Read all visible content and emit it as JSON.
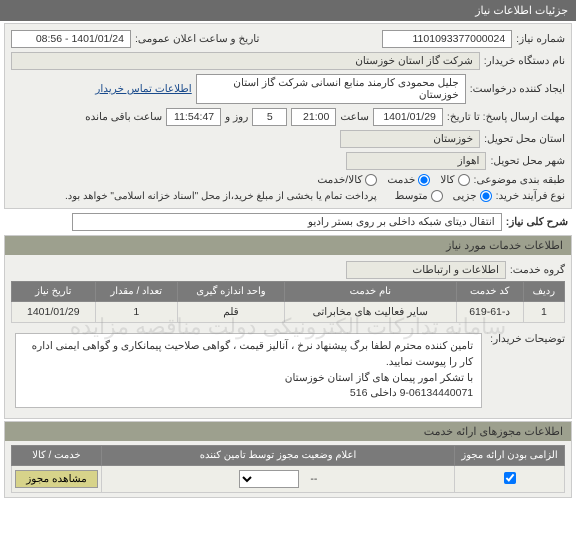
{
  "header": {
    "title": "جزئیات اطلاعات نیاز"
  },
  "info": {
    "need_no_label": "شماره نیاز:",
    "need_no": "1101093377000024",
    "pub_date_label": "تاریخ و ساعت اعلان عمومی:",
    "pub_date": "1401/01/24 - 08:56",
    "buyer_label": "نام دستگاه خریدار:",
    "buyer": "شرکت گاز استان خوزستان",
    "requester_label": "ایجاد کننده درخواست:",
    "requester": "جلیل محمودی کارمند منابع انسانی شرکت گاز استان خوزستان",
    "contact_link": "اطلاعات تماس خریدار",
    "deadline_label": "مهلت ارسال پاسخ: تا تاریخ:",
    "deadline_date": "1401/01/29",
    "time_label": "ساعت",
    "deadline_time": "21:00",
    "days_label": "روز و",
    "days": "5",
    "remaining_time": "11:54:47",
    "remaining_label": "ساعت باقی مانده",
    "province_label": "استان محل تحویل:",
    "province": "خوزستان",
    "city_label": "شهر محل تحویل:",
    "city": "اهواز",
    "subject_class_label": "طبقه بندی موضوعی:",
    "radio_kala": "کالا",
    "radio_khadmat": "خدمت",
    "radio_both": "کالا/خدمت",
    "process_label": "نوع فرآیند خرید:",
    "radio_jozi": "جزیی",
    "radio_motavaset": "متوسط",
    "process_note": "پرداخت تمام یا بخشی از مبلغ خرید،از محل \"اسناد خزانه اسلامی\" خواهد بود."
  },
  "desc": {
    "title": "شرح کلی نیاز:",
    "text": "انتقال دیتای شبکه داخلی بر روی بستر رادیو"
  },
  "services_section": {
    "title": "اطلاعات خدمات مورد نیاز",
    "group_label": "گروه خدمت:",
    "group_value": "اطلاعات و ارتباطات",
    "columns": [
      "ردیف",
      "کد خدمت",
      "نام خدمت",
      "واحد اندازه گیری",
      "تعداد / مقدار",
      "تاریخ نیاز"
    ],
    "rows": [
      [
        "1",
        "د-61-619",
        "سایر فعالیت های مخابراتی",
        "قلم",
        "1",
        "1401/01/29"
      ]
    ]
  },
  "buyer_note": {
    "label": "توضیحات خریدار:",
    "text": "تامین کننده محترم لطفا برگ پیشنهاد نرخ ، آنالیز قیمت ، گواهی صلاحیت پیمانکاری و گواهی ایمنی اداره کار را پیوست نمایید.\nبا تشکر امور پیمان های گاز استان خوزستان\n9-06134440071 داخلی 516"
  },
  "watermark": "سامانه تدارکات الکترونیکی دولت   مناقصه   مزایده",
  "permits": {
    "title": "اطلاعات مجوزهای ارائه خدمت",
    "columns": [
      "الزامی بودن ارائه مجوز",
      "اعلام وضعیت مجوز توسط تامین کننده",
      "خدمت / کالا"
    ],
    "row": {
      "dash": "--",
      "view_btn": "مشاهده مجوز"
    }
  }
}
